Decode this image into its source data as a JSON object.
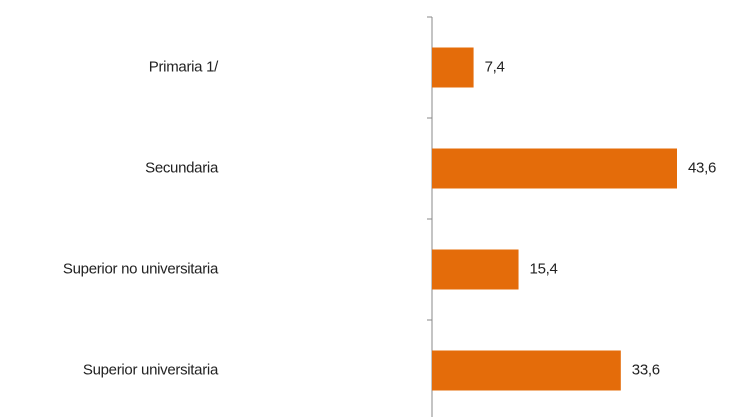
{
  "chart_data": {
    "type": "bar",
    "orientation": "horizontal",
    "categories": [
      "Primaria  1/",
      "Secundaria",
      "Superior no universitaria",
      "Superior universitaria"
    ],
    "values": [
      7.4,
      43.6,
      15.4,
      33.6
    ],
    "value_labels": [
      "7,4",
      "43,6",
      "15,4",
      "33,6"
    ],
    "color": "#e46c0a"
  }
}
